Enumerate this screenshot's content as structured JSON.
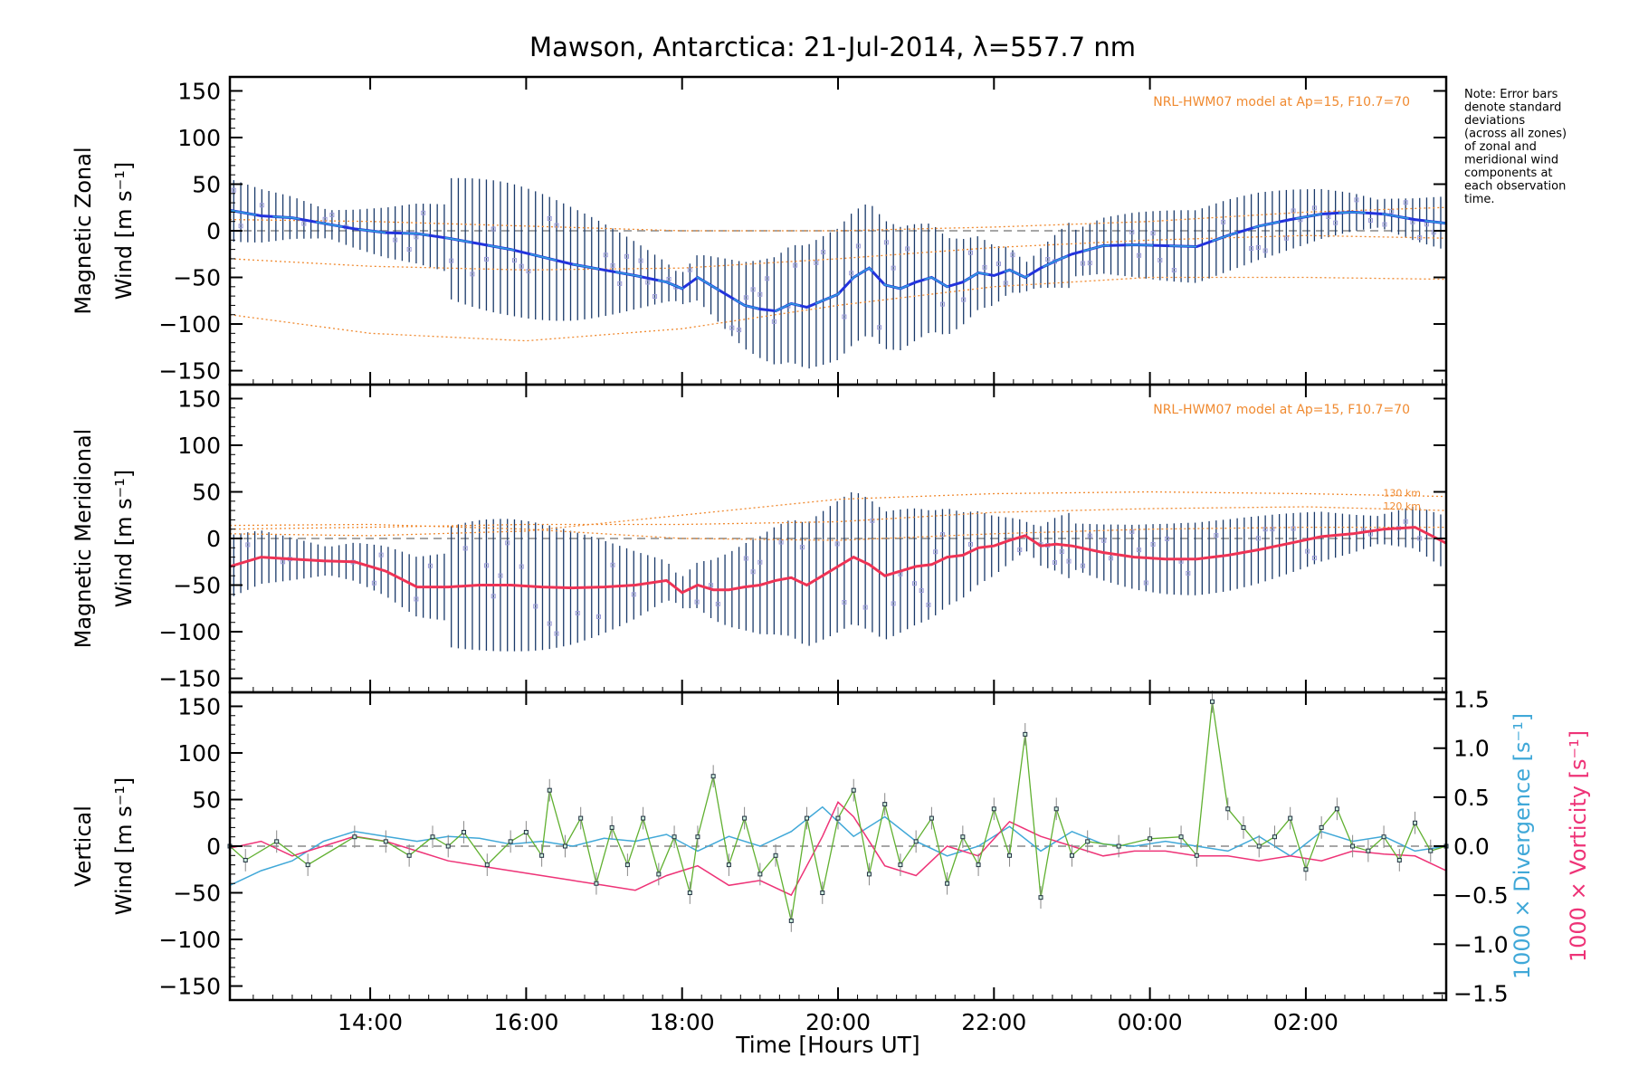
{
  "title": "Mawson, Antarctica: 21-Jul-2014, λ=557.7 nm",
  "note_lines": [
    "Note: Error bars",
    "denote standard",
    "deviations",
    "(across all zones)",
    "of zonal and",
    "meridional wind",
    "components at",
    "each observation",
    "time."
  ],
  "xlabel": "Time [Hours UT]",
  "x_ticks": [
    "14:00",
    "16:00",
    "18:00",
    "20:00",
    "22:00",
    "00:00",
    "02:00"
  ],
  "colors": {
    "zonal": "#2233dd",
    "zonal_light": "#33a0dd",
    "meridional": "#ee3355",
    "model": "#f08a30",
    "vertical": "#60b030",
    "divergence": "#40a8d8",
    "vorticity": "#ee3377",
    "errorbar": "#1a3a6a",
    "scatter": "#9a9ad8",
    "zero": "#888888"
  },
  "chart_data": [
    {
      "type": "line",
      "panel": "zonal",
      "ylabel_line1": "Magnetic Zonal",
      "ylabel_line2": "Wind [m s⁻¹]",
      "model_label": "NRL-HWM07 model at Ap=15, F10.7=70",
      "xlim": [
        12.2,
        27.8
      ],
      "ylim": [
        -165,
        165
      ],
      "y_ticks": [
        150,
        100,
        50,
        0,
        -50,
        -100,
        -150
      ],
      "series": [
        {
          "role": "mean",
          "x": [
            12.2,
            12.6,
            13.0,
            13.4,
            13.8,
            14.2,
            14.6,
            15.0,
            15.4,
            15.8,
            16.2,
            16.6,
            17.0,
            17.4,
            17.8,
            18.0,
            18.2,
            18.4,
            18.6,
            18.8,
            19.0,
            19.2,
            19.4,
            19.6,
            19.8,
            20.0,
            20.2,
            20.4,
            20.6,
            20.8,
            21.0,
            21.2,
            21.4,
            21.6,
            21.8,
            22.0,
            22.2,
            22.4,
            22.6,
            22.8,
            23.0,
            23.4,
            23.8,
            24.2,
            24.6,
            25.0,
            25.4,
            25.8,
            26.2,
            26.6,
            27.0,
            27.4,
            27.8
          ],
          "y": [
            22,
            16,
            14,
            8,
            2,
            -2,
            -3,
            -8,
            -14,
            -20,
            -28,
            -36,
            -42,
            -48,
            -55,
            -62,
            -50,
            -60,
            -70,
            -80,
            -84,
            -86,
            -78,
            -82,
            -75,
            -68,
            -50,
            -40,
            -58,
            -62,
            -55,
            -50,
            -60,
            -55,
            -45,
            -48,
            -42,
            -50,
            -40,
            -32,
            -25,
            -16,
            -15,
            -16,
            -17,
            -5,
            5,
            12,
            18,
            20,
            18,
            12,
            8
          ]
        }
      ],
      "model_curves": [
        {
          "x": [
            12.2,
            14,
            16,
            18,
            20,
            22,
            24,
            26,
            27.8
          ],
          "y": [
            12,
            10,
            5,
            0,
            0,
            4,
            10,
            20,
            25
          ]
        },
        {
          "x": [
            12.2,
            14,
            16,
            18,
            20,
            22,
            24,
            26,
            27.8
          ],
          "y": [
            -30,
            -38,
            -42,
            -40,
            -30,
            -18,
            -10,
            -5,
            -8
          ]
        },
        {
          "x": [
            12.2,
            14,
            16,
            18,
            20,
            22,
            24,
            26,
            27.8
          ],
          "y": [
            -90,
            -110,
            -118,
            -105,
            -80,
            -60,
            -50,
            -50,
            -52
          ]
        }
      ]
    },
    {
      "type": "line",
      "panel": "meridional",
      "ylabel_line1": "Magnetic Meridional",
      "ylabel_line2": "Wind [m s⁻¹]",
      "model_label": "NRL-HWM07 model at Ap=15, F10.7=70",
      "model_altitudes": [
        "130 km",
        "120 km"
      ],
      "xlim": [
        12.2,
        27.8
      ],
      "ylim": [
        -165,
        165
      ],
      "y_ticks": [
        150,
        100,
        50,
        0,
        -50,
        -100,
        -150
      ],
      "series": [
        {
          "role": "mean",
          "x": [
            12.2,
            12.6,
            13.0,
            13.4,
            13.8,
            14.2,
            14.6,
            15.0,
            15.4,
            15.8,
            16.2,
            16.6,
            17.0,
            17.4,
            17.8,
            18.0,
            18.2,
            18.4,
            18.6,
            18.8,
            19.0,
            19.2,
            19.4,
            19.6,
            19.8,
            20.0,
            20.2,
            20.4,
            20.6,
            20.8,
            21.0,
            21.2,
            21.4,
            21.6,
            21.8,
            22.0,
            22.2,
            22.4,
            22.6,
            22.8,
            23.0,
            23.4,
            23.8,
            24.2,
            24.6,
            25.0,
            25.4,
            25.8,
            26.2,
            26.6,
            27.0,
            27.4,
            27.8
          ],
          "y": [
            -30,
            -20,
            -22,
            -24,
            -25,
            -35,
            -52,
            -52,
            -50,
            -50,
            -52,
            -53,
            -52,
            -50,
            -45,
            -58,
            -50,
            -55,
            -55,
            -52,
            -50,
            -45,
            -42,
            -50,
            -40,
            -30,
            -20,
            -28,
            -40,
            -35,
            -30,
            -28,
            -20,
            -18,
            -10,
            -8,
            -2,
            3,
            -8,
            -6,
            -8,
            -15,
            -20,
            -22,
            -22,
            -18,
            -12,
            -5,
            2,
            5,
            10,
            12,
            -5
          ]
        }
      ],
      "model_curves": [
        {
          "x": [
            12.2,
            14,
            16,
            18,
            20,
            22,
            24,
            26,
            27.8
          ],
          "y": [
            5,
            3,
            8,
            25,
            42,
            48,
            50,
            48,
            45
          ]
        },
        {
          "x": [
            12.2,
            14,
            16,
            18,
            20,
            22,
            24,
            26,
            27.8
          ],
          "y": [
            10,
            12,
            15,
            15,
            18,
            28,
            32,
            34,
            30
          ]
        },
        {
          "x": [
            12.2,
            14,
            16,
            18,
            20,
            22,
            24,
            26,
            27.8
          ],
          "y": [
            14,
            15,
            10,
            0,
            -2,
            5,
            10,
            12,
            12
          ]
        }
      ]
    },
    {
      "type": "line",
      "panel": "vertical",
      "ylabel_line1": "Vertical",
      "ylabel_line2": "Wind [m s⁻¹]",
      "right_label_1": "1000 × Divergence [s⁻¹]",
      "right_label_2": "1000 × Vorticity [s⁻¹]",
      "xlim": [
        12.2,
        27.8
      ],
      "ylim": [
        -165,
        165
      ],
      "y_ticks": [
        150,
        100,
        50,
        0,
        -50,
        -100,
        -150
      ],
      "y2lim": [
        -1.57,
        1.57
      ],
      "y2_ticks": [
        "1.5",
        "1.0",
        "0.5",
        "0.0",
        "−0.5",
        "−1.0",
        "−1.5"
      ],
      "series": [
        {
          "name": "Vertical Wind",
          "x": [
            12.2,
            12.4,
            12.8,
            13.2,
            13.8,
            14.2,
            14.5,
            14.8,
            15.0,
            15.2,
            15.5,
            15.8,
            16.0,
            16.2,
            16.3,
            16.5,
            16.7,
            16.9,
            17.1,
            17.3,
            17.5,
            17.7,
            17.9,
            18.1,
            18.2,
            18.4,
            18.6,
            18.8,
            19.0,
            19.2,
            19.4,
            19.6,
            19.8,
            20.0,
            20.2,
            20.4,
            20.6,
            20.8,
            21.0,
            21.2,
            21.4,
            21.6,
            21.8,
            22.0,
            22.2,
            22.4,
            22.6,
            22.8,
            23.0,
            23.2,
            23.6,
            24.0,
            24.4,
            24.6,
            24.8,
            25.0,
            25.2,
            25.4,
            25.6,
            25.8,
            26.0,
            26.2,
            26.4,
            26.6,
            26.8,
            27.0,
            27.2,
            27.4,
            27.6,
            27.8
          ],
          "y": [
            0,
            -15,
            5,
            -20,
            10,
            5,
            -10,
            10,
            0,
            15,
            -20,
            5,
            15,
            -10,
            60,
            0,
            30,
            -40,
            20,
            -20,
            30,
            -30,
            10,
            -50,
            10,
            75,
            -20,
            30,
            -30,
            -10,
            -80,
            30,
            -50,
            30,
            60,
            -30,
            45,
            -20,
            5,
            30,
            -40,
            10,
            -20,
            40,
            -10,
            120,
            -55,
            40,
            -10,
            5,
            0,
            8,
            10,
            -10,
            155,
            40,
            20,
            0,
            10,
            30,
            -25,
            20,
            40,
            0,
            -5,
            10,
            -15,
            25,
            -5,
            0
          ]
        },
        {
          "name": "Divergence",
          "x": [
            12.2,
            12.6,
            13.0,
            13.4,
            13.8,
            14.2,
            14.6,
            15.0,
            15.4,
            15.8,
            16.2,
            16.6,
            17.0,
            17.4,
            17.8,
            18.2,
            18.6,
            19.0,
            19.4,
            19.8,
            20.2,
            20.6,
            21.0,
            21.4,
            21.8,
            22.2,
            22.6,
            23.0,
            23.4,
            23.8,
            24.2,
            24.6,
            25.0,
            25.4,
            25.8,
            26.2,
            26.6,
            27.0,
            27.4,
            27.8
          ],
          "y": [
            -0.4,
            -0.25,
            -0.15,
            0.05,
            0.15,
            0.1,
            0.05,
            0.1,
            0.08,
            0.02,
            0.05,
            0.0,
            0.08,
            0.05,
            0.12,
            -0.05,
            0.1,
            0.0,
            0.15,
            0.4,
            0.1,
            0.3,
            0.05,
            -0.1,
            0.0,
            0.2,
            -0.05,
            0.15,
            0.02,
            0.0,
            0.05,
            0.0,
            -0.05,
            0.1,
            -0.1,
            0.15,
            0.05,
            0.1,
            -0.05,
            0.0
          ]
        },
        {
          "name": "Vorticity",
          "x": [
            12.2,
            12.6,
            13.0,
            13.4,
            13.8,
            14.2,
            14.6,
            15.0,
            15.4,
            15.8,
            16.2,
            16.6,
            17.0,
            17.4,
            17.8,
            18.2,
            18.6,
            19.0,
            19.4,
            19.8,
            20.0,
            20.2,
            20.6,
            21.0,
            21.4,
            21.8,
            22.2,
            22.6,
            23.0,
            23.4,
            23.8,
            24.2,
            24.6,
            25.0,
            25.4,
            25.8,
            26.2,
            26.6,
            27.0,
            27.4,
            27.8
          ],
          "y": [
            -0.02,
            0.05,
            -0.1,
            0.0,
            0.1,
            0.05,
            -0.05,
            -0.15,
            -0.2,
            -0.25,
            -0.3,
            -0.35,
            -0.4,
            -0.45,
            -0.3,
            -0.2,
            -0.4,
            -0.35,
            -0.5,
            0.1,
            0.45,
            0.3,
            -0.2,
            -0.3,
            0.0,
            -0.1,
            0.25,
            0.1,
            0.0,
            -0.1,
            -0.05,
            -0.05,
            -0.1,
            -0.1,
            -0.15,
            -0.1,
            -0.15,
            -0.05,
            -0.08,
            -0.1,
            -0.25
          ]
        }
      ]
    }
  ]
}
